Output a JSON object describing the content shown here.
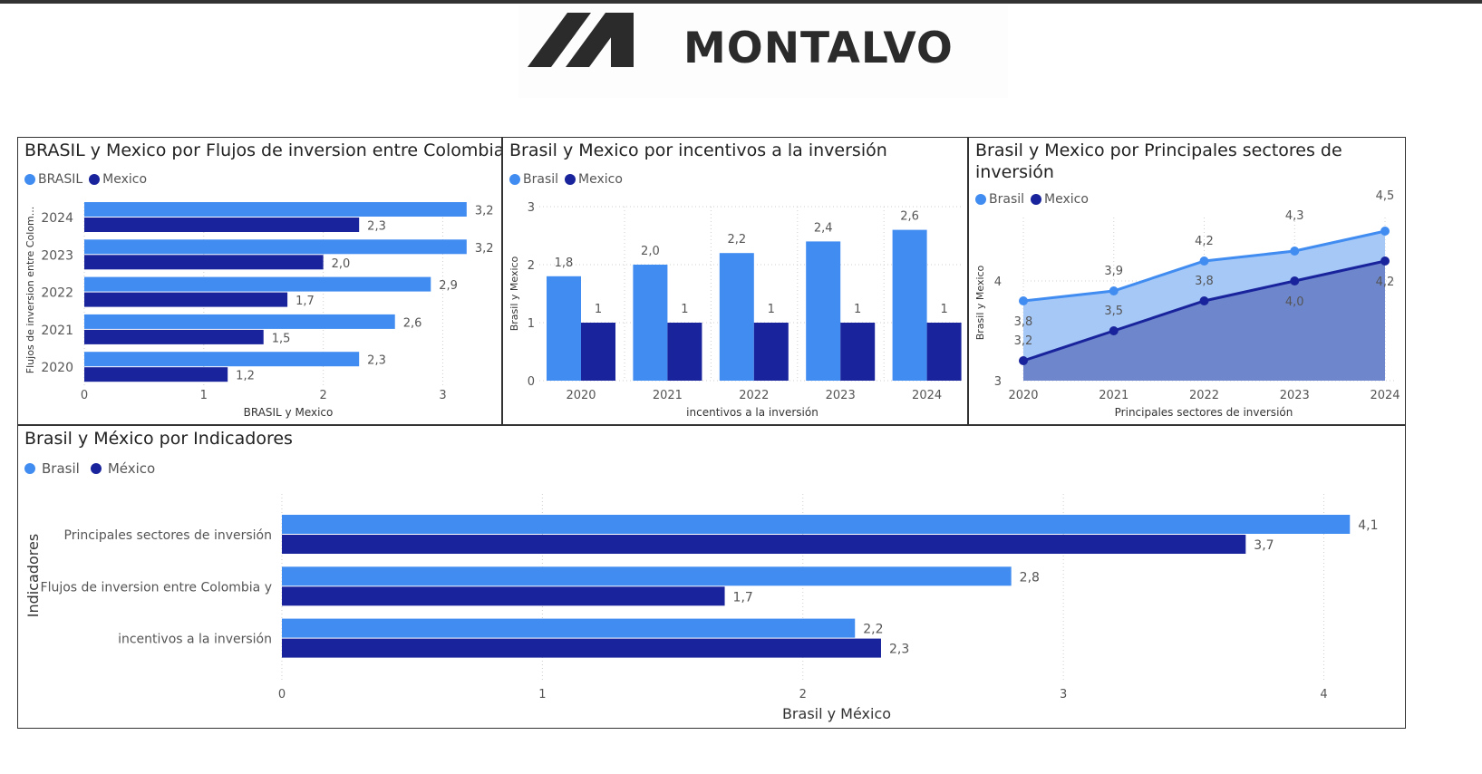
{
  "logo": {
    "text": "MONTALVO"
  },
  "colors": {
    "brasil": "#418cf0",
    "mexico": "#19239b",
    "brasil_area": "#a6c8f7",
    "mexico_area": "#6e86cc",
    "grid": "#cfcfcf",
    "text": "#555555"
  },
  "chart_data": [
    {
      "type": "bar",
      "orientation": "horizontal",
      "title": "BRASIL y Mexico por Flujos de inversion entre Colombia y",
      "xlabel": "BRASIL y Mexico",
      "ylabel": "Flujos de inversion entre Colom...",
      "categories": [
        "2024",
        "2023",
        "2022",
        "2021",
        "2020"
      ],
      "series": [
        {
          "name": "BRASIL",
          "values": [
            3.2,
            3.2,
            2.9,
            2.6,
            2.3
          ],
          "labels": [
            "3,2",
            "3,2",
            "2,9",
            "2,6",
            "2,3"
          ]
        },
        {
          "name": "Mexico",
          "values": [
            2.3,
            2.0,
            1.7,
            1.5,
            1.2
          ],
          "labels": [
            "2,3",
            "2,0",
            "1,7",
            "1,5",
            "1,2"
          ]
        }
      ],
      "xlim": [
        0,
        3.3
      ],
      "xticks": [
        "0",
        "1",
        "2",
        "3"
      ],
      "grid": true,
      "legend_position": "top-left"
    },
    {
      "type": "bar",
      "orientation": "vertical",
      "title": "Brasil y Mexico por incentivos a la inversión",
      "xlabel": "incentivos a la inversión",
      "ylabel": "Brasil y Mexico",
      "categories": [
        "2020",
        "2021",
        "2022",
        "2023",
        "2024"
      ],
      "series": [
        {
          "name": "Brasil",
          "values": [
            1.8,
            2.0,
            2.2,
            2.4,
            2.6
          ],
          "labels": [
            "1,8",
            "2,0",
            "2,2",
            "2,4",
            "2,6"
          ]
        },
        {
          "name": "Mexico",
          "values": [
            1,
            1,
            1,
            1,
            1
          ],
          "labels": [
            "1",
            "1",
            "1",
            "1",
            "1"
          ]
        }
      ],
      "ylim": [
        0,
        3
      ],
      "yticks": [
        "0",
        "1",
        "2",
        "3"
      ],
      "grid": true,
      "legend_position": "top-left"
    },
    {
      "type": "area",
      "title": "Brasil y Mexico por Principales sectores de inversión",
      "xlabel": "Principales sectores de inversión",
      "ylabel": "Brasil y Mexico",
      "categories": [
        "2020",
        "2021",
        "2022",
        "2023",
        "2024"
      ],
      "series": [
        {
          "name": "Brasil",
          "values": [
            3.8,
            3.9,
            4.2,
            4.3,
            4.5
          ],
          "labels": [
            "3,8",
            "3,9",
            "4,2",
            "4,3",
            "4,5"
          ]
        },
        {
          "name": "Mexico",
          "values": [
            3.2,
            3.5,
            3.8,
            4.0,
            4.2
          ],
          "labels": [
            "3,2",
            "3,5",
            "3,8",
            "4,0",
            "4,2"
          ]
        }
      ],
      "ylim": [
        3,
        4.8
      ],
      "yticks": [
        "3",
        "4"
      ],
      "grid": true,
      "legend_position": "top-left"
    },
    {
      "type": "bar",
      "orientation": "horizontal",
      "title": "Brasil y México por Indicadores",
      "xlabel": "Brasil y México",
      "ylabel": "Indicadores",
      "categories": [
        "Principales sectores de inversión",
        "Flujos de inversion entre Colombia y",
        "incentivos a la inversión"
      ],
      "series": [
        {
          "name": "Brasil",
          "values": [
            4.1,
            2.8,
            2.2
          ],
          "labels": [
            "4,1",
            "2,8",
            "2,2"
          ]
        },
        {
          "name": "México",
          "values": [
            3.7,
            1.7,
            2.3
          ],
          "labels": [
            "3,7",
            "1,7",
            "2,3"
          ]
        }
      ],
      "xlim": [
        0,
        4.2
      ],
      "xticks": [
        "0",
        "1",
        "2",
        "3",
        "4"
      ],
      "grid": true,
      "legend_position": "top-left"
    }
  ]
}
